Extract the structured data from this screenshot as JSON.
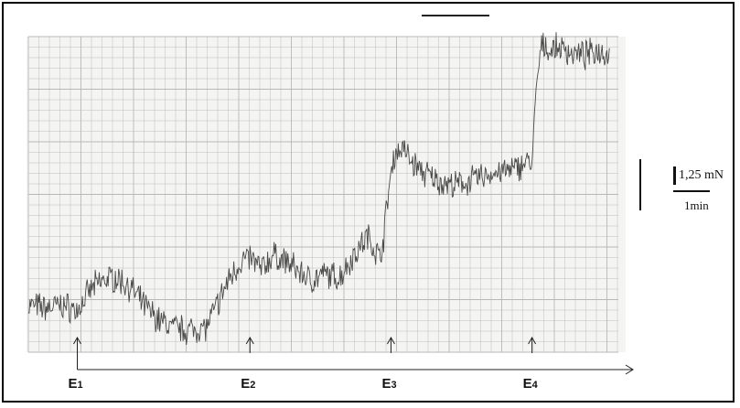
{
  "chart_data": {
    "type": "line",
    "title": "",
    "xlabel": "",
    "ylabel": "",
    "grid": true,
    "trace_color": "#4a4a4a",
    "grid_color": "#b8b8b8",
    "axis_color": "#222222",
    "events": [
      {
        "label": "E",
        "sub": "1",
        "x": 1.7
      },
      {
        "label": "E",
        "sub": "2",
        "x": 7.7
      },
      {
        "label": "E",
        "sub": "3",
        "x": 12.6
      },
      {
        "label": "E",
        "sub": "4",
        "x": 17.5
      }
    ],
    "scale_bars": {
      "force": "1,25 mN",
      "time": "1min"
    },
    "x": [
      0,
      0.6,
      1.2,
      1.7,
      2.2,
      2.6,
      3.0,
      3.5,
      4.0,
      4.5,
      5.0,
      5.5,
      6.2,
      6.6,
      7.0,
      7.4,
      7.7,
      8.1,
      8.5,
      8.9,
      9.3,
      9.8,
      10.3,
      10.8,
      11.3,
      11.8,
      12.2,
      12.35,
      12.5,
      12.7,
      13.0,
      13.3,
      13.7,
      14.2,
      14.8,
      15.4,
      15.9,
      16.4,
      16.9,
      17.3,
      17.5,
      17.65,
      17.8,
      17.95,
      18.1,
      18.5,
      18.9,
      19.3,
      19.8,
      20.2
    ],
    "y": [
      0.5,
      0.45,
      0.5,
      0.4,
      0.8,
      0.95,
      1.0,
      0.85,
      0.5,
      0.25,
      0.1,
      0.05,
      0.1,
      0.55,
      1.0,
      1.3,
      1.35,
      1.15,
      1.4,
      1.3,
      1.15,
      0.95,
      1.05,
      1.0,
      1.4,
      1.75,
      1.35,
      1.75,
      2.5,
      3.2,
      3.35,
      3.1,
      2.9,
      2.75,
      2.65,
      2.75,
      2.85,
      2.9,
      2.95,
      3.1,
      3.05,
      4.4,
      5.1,
      5.2,
      5.1,
      5.15,
      5.05,
      5.0,
      5.1,
      5.05
    ],
    "xlim": [
      0,
      20.5
    ],
    "ylim": [
      -0.35,
      5.35
    ]
  }
}
